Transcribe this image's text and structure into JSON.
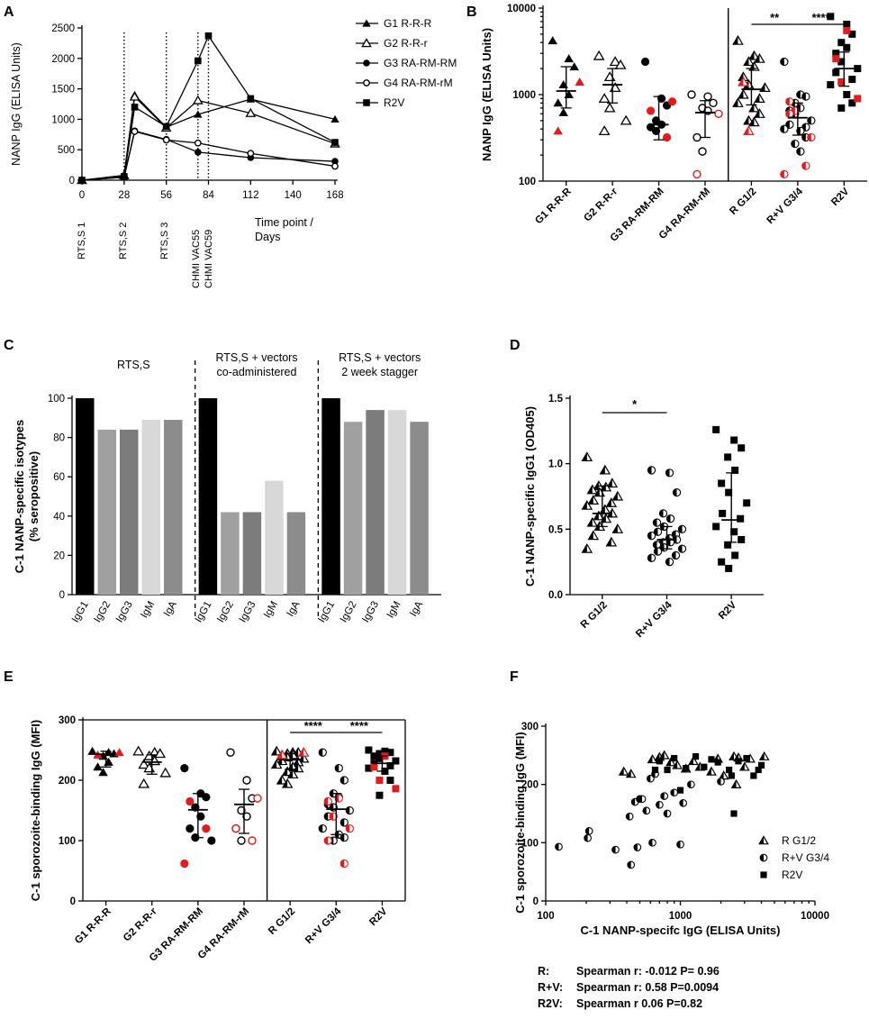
{
  "colors": {
    "red": "#e41a1c",
    "black": "#000000",
    "bar_shades": [
      "#000000",
      "#a0a0a0",
      "#7c7c7c",
      "#d8d8d8",
      "#8c8c8c"
    ]
  },
  "chart_data": [
    {
      "panel": "A",
      "type": "line",
      "ylabel": "NANP IgG (ELISA Units)",
      "ylim": [
        0,
        2500
      ],
      "yticks": [
        "0",
        "500",
        "1000",
        "1500",
        "2000",
        "2500"
      ],
      "xticks": [
        "0",
        "28",
        "56",
        "84",
        "112",
        "140",
        "168"
      ],
      "xlabel": [
        "Time point /",
        "Days"
      ],
      "vlines": [
        28,
        56,
        77,
        84
      ],
      "annotations": [
        "RTS,S 1",
        "RTS,S 2",
        "RTS,S 3",
        "CHMI VAC55",
        "CHMI VAC59"
      ],
      "series": [
        {
          "name": "G1 R-R-R",
          "marker": "tri-filled",
          "x": [
            0,
            28,
            35,
            56,
            77,
            112,
            168
          ],
          "y": [
            0,
            80,
            1400,
            870,
            1080,
            1330,
            1000
          ]
        },
        {
          "name": "G2 R-R-r",
          "marker": "tri-open",
          "x": [
            0,
            28,
            35,
            56,
            77,
            112,
            168
          ],
          "y": [
            0,
            80,
            1370,
            860,
            1310,
            1100,
            600
          ]
        },
        {
          "name": "G3 RA-RM-RM",
          "marker": "circle-filled",
          "x": [
            0,
            28,
            35,
            56,
            77,
            112,
            168
          ],
          "y": [
            0,
            50,
            810,
            670,
            460,
            370,
            310
          ]
        },
        {
          "name": "G4 RA-RM-rM",
          "marker": "circle-open",
          "x": [
            0,
            28,
            35,
            56,
            77,
            112,
            168
          ],
          "y": [
            0,
            50,
            800,
            660,
            610,
            440,
            230
          ]
        },
        {
          "name": "R2V",
          "marker": "square-filled",
          "x": [
            0,
            28,
            35,
            56,
            77,
            84,
            112,
            168
          ],
          "y": [
            0,
            60,
            1200,
            880,
            1960,
            2370,
            1340,
            620
          ]
        }
      ]
    },
    {
      "panel": "B",
      "type": "scatter",
      "ylabel": "NANP IgG (ELISA Units)",
      "yscale": "log",
      "ylim": [
        100,
        10000
      ],
      "yticks": [
        "100",
        "1000",
        "10000"
      ],
      "categories": [
        "G1 R-R-R",
        "G2 R-R-r",
        "G3 RA-RM-RM",
        "G4 RA-RM-rM",
        "R G1/2",
        "R+V G3/4",
        "R2V"
      ],
      "significance": [
        "**",
        "****"
      ],
      "groups": [
        {
          "name": "G1 R-R-R",
          "marker": "tri-filled",
          "median": 1100,
          "iqr": [
            700,
            2100
          ],
          "black": [
            4200,
            2600,
            2100,
            1300,
            1000,
            800,
            620
          ],
          "red": [
            1400,
            380
          ]
        },
        {
          "name": "G2 R-R-r",
          "marker": "tri-open",
          "median": 1300,
          "iqr": [
            800,
            2000
          ],
          "black": [
            2800,
            2400,
            2200,
            1600,
            1200,
            900,
            700,
            500,
            380
          ],
          "red": []
        },
        {
          "name": "G3 RA-RM-RM",
          "marker": "circle-filled",
          "median": 450,
          "iqr": [
            300,
            950
          ],
          "black": [
            2400,
            900,
            750,
            500,
            450,
            420,
            380
          ],
          "red": [
            830,
            650,
            320
          ]
        },
        {
          "name": "G4 RA-RM-rM",
          "marker": "circle-open",
          "median": 620,
          "iqr": [
            320,
            850
          ],
          "black": [
            1000,
            950,
            800,
            700,
            650,
            320,
            220
          ],
          "red": [
            600,
            120
          ]
        },
        {
          "name": "R G1/2",
          "marker": "tri-half",
          "median": 1150,
          "iqr": [
            760,
            2000
          ],
          "black": [
            4200,
            2800,
            2600,
            2400,
            2100,
            1600,
            1300,
            1200,
            1000,
            900,
            800,
            700,
            600,
            500,
            480
          ],
          "red": [
            1400,
            380
          ]
        },
        {
          "name": "R+V G3/4",
          "marker": "circle-half",
          "median": 540,
          "iqr": [
            340,
            800
          ],
          "black": [
            2400,
            1000,
            950,
            800,
            700,
            650,
            600,
            500,
            450,
            420,
            400,
            380,
            320,
            270,
            220
          ],
          "red": [
            830,
            650,
            320,
            600,
            150,
            120
          ]
        },
        {
          "name": "R2V",
          "marker": "square-filled",
          "median": 2000,
          "iqr": [
            1250,
            3100
          ],
          "black": [
            8000,
            6500,
            5000,
            4000,
            3500,
            3000,
            2400,
            2000,
            1800,
            1500,
            1300,
            1000,
            800,
            700
          ],
          "red": [
            5500,
            2600,
            1400,
            900
          ]
        }
      ]
    },
    {
      "panel": "C",
      "type": "bar",
      "ylabel": [
        "C-1 NANP-specific isotypes",
        "(% seropositive)"
      ],
      "ylim": [
        0,
        100
      ],
      "yticks": [
        "0",
        "20",
        "40",
        "60",
        "80",
        "100"
      ],
      "categories": [
        "IgG1",
        "IgG2",
        "IgG3",
        "IgM",
        "IgA"
      ],
      "series": [
        {
          "name": "RTS,S",
          "values": [
            100,
            84,
            84,
            89,
            89
          ]
        },
        {
          "name": "RTS,S + vectors co-administered",
          "values": [
            100,
            42,
            42,
            58,
            42
          ]
        },
        {
          "name": "RTS,S + vectors 2 week stagger",
          "values": [
            100,
            88,
            94,
            94,
            88
          ]
        }
      ],
      "section_titles": [
        [
          "RTS,S"
        ],
        [
          "RTS,S + vectors",
          "co-administered"
        ],
        [
          "RTS,S + vectors",
          "2 week stagger"
        ]
      ]
    },
    {
      "panel": "D",
      "type": "scatter",
      "ylabel": "C-1 NANP-specific IgG1 (OD405)",
      "ylim": [
        0,
        1.5
      ],
      "yticks": [
        "0.0",
        "0.5",
        "1.0",
        "1.5"
      ],
      "categories": [
        "R G1/2",
        "R+V G3/4",
        "R2V"
      ],
      "significance": [
        "*"
      ],
      "groups": [
        {
          "name": "R G1/2",
          "marker": "tri-half",
          "median": 0.62,
          "iqr": [
            0.52,
            0.83
          ],
          "points": [
            1.05,
            0.95,
            0.85,
            0.83,
            0.82,
            0.8,
            0.78,
            0.75,
            0.72,
            0.7,
            0.68,
            0.65,
            0.62,
            0.6,
            0.58,
            0.55,
            0.52,
            0.5,
            0.45,
            0.4,
            0.35
          ]
        },
        {
          "name": "R+V G3/4",
          "marker": "circle-half",
          "median": 0.42,
          "iqr": [
            0.35,
            0.52
          ],
          "points": [
            0.95,
            0.93,
            0.78,
            0.62,
            0.58,
            0.55,
            0.52,
            0.5,
            0.48,
            0.46,
            0.45,
            0.43,
            0.42,
            0.4,
            0.4,
            0.38,
            0.36,
            0.35,
            0.33,
            0.3,
            0.28,
            0.25
          ]
        },
        {
          "name": "R2V",
          "marker": "square-filled",
          "median": 0.57,
          "iqr": [
            0.4,
            0.93
          ],
          "points": [
            1.26,
            1.18,
            1.12,
            1.05,
            0.95,
            0.85,
            0.78,
            0.7,
            0.62,
            0.58,
            0.52,
            0.48,
            0.42,
            0.38,
            0.3,
            0.25,
            0.2
          ]
        }
      ]
    },
    {
      "panel": "E",
      "type": "scatter",
      "ylabel": "C-1 sporozoite-binding IgG (MFI)",
      "ylim": [
        0,
        300
      ],
      "yticks": [
        "0",
        "100",
        "200",
        "300"
      ],
      "categories": [
        "G1 R-R-R",
        "G2 R-R-r",
        "G3 RA-RM-RM",
        "G4 RA-RM-rM",
        "R G1/2",
        "R+V G3/4",
        "R2V"
      ],
      "significance": [
        "****",
        "****"
      ],
      "groups": [
        {
          "name": "G1 R-R-R",
          "marker": "tri-filled",
          "median": 243,
          "iqr": [
            222,
            248
          ],
          "black": [
            248,
            246,
            244,
            240,
            230,
            222,
            213
          ],
          "red": [
            246,
            242
          ]
        },
        {
          "name": "G2 R-R-r",
          "marker": "tri-open",
          "median": 230,
          "iqr": [
            210,
            242
          ],
          "black": [
            248,
            246,
            244,
            240,
            232,
            226,
            220,
            212,
            194
          ],
          "red": []
        },
        {
          "name": "G3 RA-RM-RM",
          "marker": "circle-filled",
          "median": 151,
          "iqr": [
            105,
            178
          ],
          "black": [
            220,
            178,
            172,
            155,
            140,
            120,
            105,
            100
          ],
          "red": [
            165,
            120,
            62
          ]
        },
        {
          "name": "G4 RA-RM-rM",
          "marker": "circle-open",
          "median": 160,
          "iqr": [
            112,
            185
          ],
          "black": [
            246,
            200,
            170,
            150,
            140,
            120,
            100
          ],
          "red": [
            170,
            120,
            100
          ]
        },
        {
          "name": "R G1/2",
          "marker": "tri-half",
          "median": 234,
          "iqr": [
            218,
            244
          ],
          "black": [
            248,
            246,
            246,
            244,
            242,
            240,
            238,
            236,
            232,
            230,
            226,
            222,
            220,
            214,
            210,
            200,
            194
          ],
          "red": [
            246,
            242
          ]
        },
        {
          "name": "R+V G3/4",
          "marker": "circle-half",
          "median": 152,
          "iqr": [
            110,
            178
          ],
          "black": [
            246,
            220,
            200,
            178,
            172,
            160,
            155,
            150,
            140,
            130,
            120,
            110,
            105,
            100
          ],
          "red": [
            170,
            165,
            140,
            120,
            100,
            62
          ]
        },
        {
          "name": "R2V",
          "marker": "square-filled",
          "median": 228,
          "iqr": [
            215,
            240
          ],
          "black": [
            250,
            248,
            246,
            244,
            242,
            240,
            236,
            232,
            228,
            224,
            220,
            215,
            200,
            175
          ],
          "red": [
            240,
            222,
            200,
            186
          ]
        }
      ]
    },
    {
      "panel": "F",
      "type": "scatter",
      "xlabel": "C-1 NANP-specifc IgG (ELISA Units)",
      "xscale": "log",
      "xlim": [
        100,
        10000
      ],
      "xticks": [
        "100",
        "1000",
        "10000"
      ],
      "ylabel": "C-1 sporozoite-binding IgG (MFI)",
      "ylim": [
        0,
        300
      ],
      "yticks": [
        "0",
        "100",
        "200",
        "300"
      ],
      "series": [
        {
          "name": "R G1/2",
          "marker": "tri-half",
          "points": [
            [
              380,
              222
            ],
            [
              430,
              218
            ],
            [
              620,
              243
            ],
            [
              700,
              247
            ],
            [
              760,
              250
            ],
            [
              850,
              238
            ],
            [
              950,
              233
            ],
            [
              1250,
              240
            ],
            [
              1400,
              230
            ],
            [
              1700,
              222
            ],
            [
              1900,
              244
            ],
            [
              2100,
              215
            ],
            [
              2500,
              248
            ],
            [
              2700,
              246
            ],
            [
              3000,
              230
            ],
            [
              3300,
              244
            ],
            [
              4200,
              248
            ],
            [
              2600,
              200
            ],
            [
              1100,
              227
            ]
          ]
        },
        {
          "name": "R+V G3/4",
          "marker": "circle-half",
          "points": [
            [
              125,
              93
            ],
            [
              210,
              120
            ],
            [
              205,
              108
            ],
            [
              330,
              88
            ],
            [
              420,
              145
            ],
            [
              430,
              62
            ],
            [
              460,
              170
            ],
            [
              480,
              92
            ],
            [
              500,
              175
            ],
            [
              520,
              175
            ],
            [
              560,
              155
            ],
            [
              600,
              210
            ],
            [
              620,
              100
            ],
            [
              650,
              218
            ],
            [
              700,
              165
            ],
            [
              760,
              180
            ],
            [
              800,
              150
            ],
            [
              900,
              186
            ],
            [
              1000,
              97
            ],
            [
              1050,
              168
            ],
            [
              1200,
              200
            ],
            [
              2000,
              205
            ]
          ]
        },
        {
          "name": "R2V",
          "marker": "square-filled",
          "points": [
            [
              650,
              225
            ],
            [
              700,
              240
            ],
            [
              800,
              225
            ],
            [
              900,
              245
            ],
            [
              1000,
              190
            ],
            [
              1100,
              228
            ],
            [
              1300,
              248
            ],
            [
              1500,
              230
            ],
            [
              1700,
              243
            ],
            [
              1900,
              238
            ],
            [
              2300,
              225
            ],
            [
              2400,
              215
            ],
            [
              2500,
              150
            ],
            [
              2700,
              240
            ],
            [
              3100,
              245
            ],
            [
              3500,
              215
            ],
            [
              3800,
              225
            ],
            [
              4000,
              233
            ]
          ]
        }
      ],
      "stats": [
        {
          "label": "R:",
          "text": "Spearman r: -0.012 P= 0.96"
        },
        {
          "label": "R+V:",
          "text": "Spearman r: 0.58 P=0.0094"
        },
        {
          "label": "R2V:",
          "text": "Spearman r 0.06 P=0.82"
        }
      ]
    }
  ]
}
